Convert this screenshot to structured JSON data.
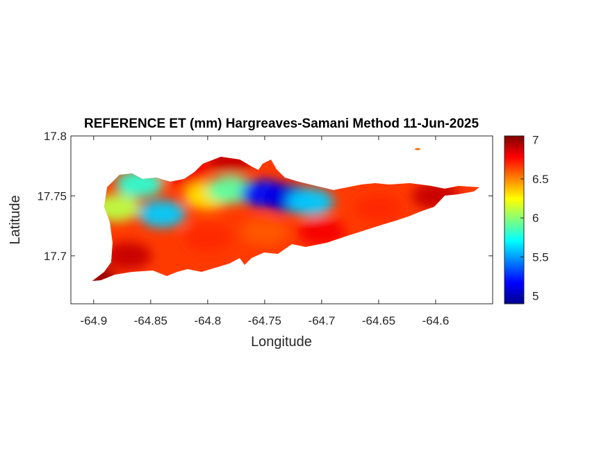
{
  "chart_data": {
    "type": "heatmap",
    "title": "REFERENCE ET (mm) Hargreaves-Samani Method  11-Jun-2025",
    "xlabel": "Longitude",
    "ylabel": "Latitude",
    "xlim": [
      -64.92,
      -64.55
    ],
    "ylim": [
      17.66,
      17.8
    ],
    "xticks": [
      -64.9,
      -64.85,
      -64.8,
      -64.75,
      -64.7,
      -64.65,
      -64.6
    ],
    "xtick_labels": [
      "-64.9",
      "-64.85",
      "-64.8",
      "-64.75",
      "-64.7",
      "-64.65",
      "-64.6"
    ],
    "yticks": [
      17.7,
      17.75,
      17.8
    ],
    "ytick_labels": [
      "17.7",
      "17.75",
      "17.8"
    ],
    "colorbar": {
      "colormap": "jet",
      "range": [
        4.9,
        7.05
      ],
      "ticks": [
        5,
        5.5,
        6,
        6.5,
        7
      ],
      "tick_labels": [
        "5",
        "5.5",
        "6",
        "6.5",
        "7"
      ]
    },
    "regions": [
      {
        "lon": -64.88,
        "lat": 17.74,
        "value": 6.1
      },
      {
        "lon": -64.84,
        "lat": 17.735,
        "value": 5.6
      },
      {
        "lon": -64.86,
        "lat": 17.76,
        "value": 5.8
      },
      {
        "lon": -64.8,
        "lat": 17.75,
        "value": 6.3
      },
      {
        "lon": -64.78,
        "lat": 17.755,
        "value": 5.9
      },
      {
        "lon": -64.75,
        "lat": 17.752,
        "value": 5.2
      },
      {
        "lon": -64.73,
        "lat": 17.748,
        "value": 5.1
      },
      {
        "lon": -64.71,
        "lat": 17.745,
        "value": 5.6
      },
      {
        "lon": -64.78,
        "lat": 17.78,
        "value": 6.9
      },
      {
        "lon": -64.82,
        "lat": 17.77,
        "value": 6.8
      },
      {
        "lon": -64.8,
        "lat": 17.715,
        "value": 6.7
      },
      {
        "lon": -64.75,
        "lat": 17.72,
        "value": 6.6
      },
      {
        "lon": -64.7,
        "lat": 17.72,
        "value": 6.8
      },
      {
        "lon": -64.65,
        "lat": 17.74,
        "value": 6.7
      },
      {
        "lon": -64.6,
        "lat": 17.75,
        "value": 6.9
      },
      {
        "lon": -64.87,
        "lat": 17.7,
        "value": 6.9
      },
      {
        "lon": -64.9,
        "lat": 17.68,
        "value": 7.0
      }
    ]
  }
}
